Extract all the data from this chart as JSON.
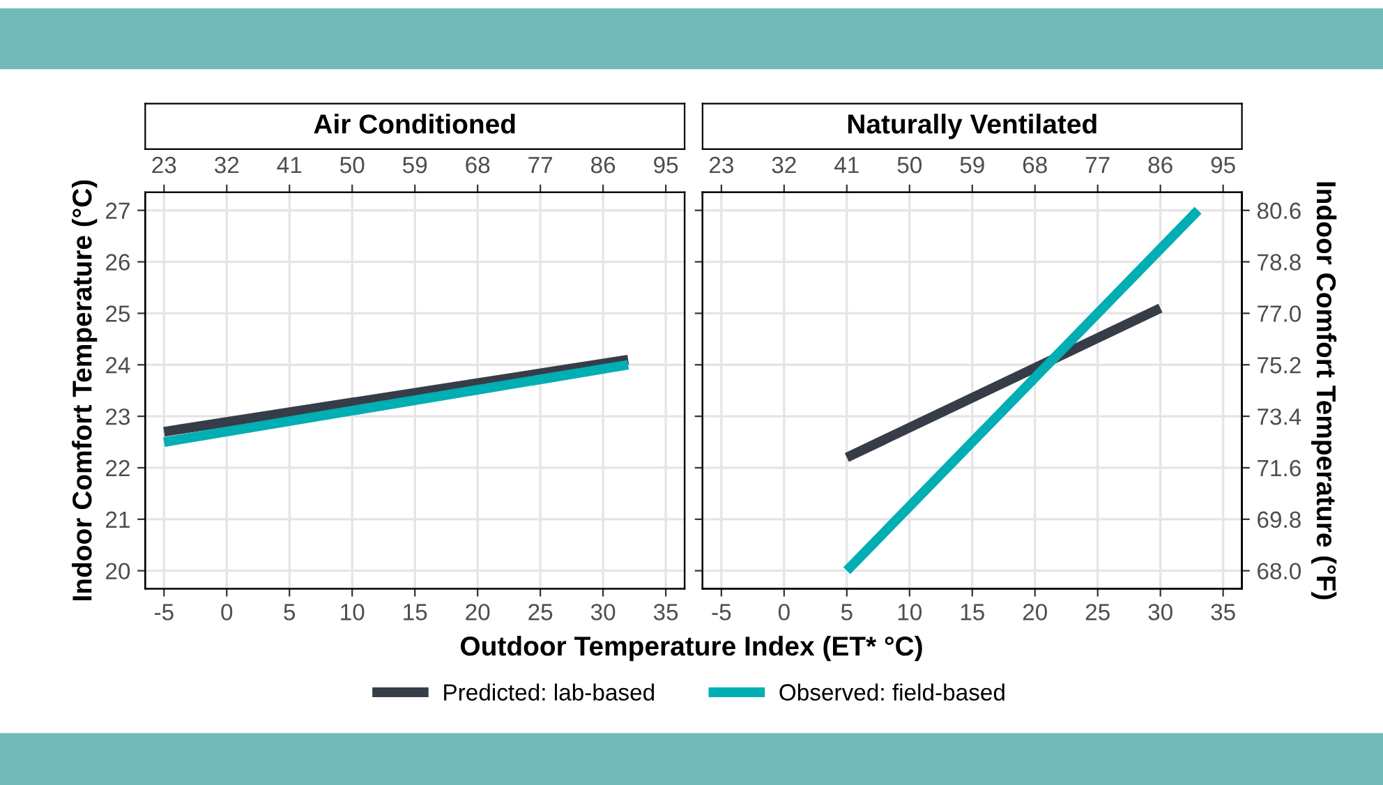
{
  "chart_data": [
    {
      "type": "line",
      "title": "Air Conditioned",
      "ylabel": "Indoor Comfort Temperature (°C)",
      "xlabel": "Outdoor Temperature Index (ET* °C)",
      "xlim": [
        -6.5,
        36.5
      ],
      "xticks": [
        -5,
        0,
        5,
        10,
        15,
        20,
        25,
        30,
        35
      ],
      "ylim": [
        19.65,
        27.35
      ],
      "yticks": [
        20,
        21,
        22,
        23,
        24,
        25,
        26,
        27
      ],
      "x2lim": [
        20.3,
        97.7
      ],
      "x2ticks": [
        23,
        32,
        41,
        50,
        59,
        68,
        77,
        86,
        95
      ],
      "grid": true,
      "legend": "bottom",
      "series": [
        {
          "name": "Predicted: lab-based",
          "color": "#373d48",
          "x": [
            -5,
            32
          ],
          "values": [
            22.7,
            24.1
          ]
        },
        {
          "name": "Observed: field-based",
          "color": "#00aeb3",
          "x": [
            -5,
            32
          ],
          "values": [
            22.5,
            24.0
          ]
        }
      ]
    },
    {
      "type": "line",
      "title": "Naturally Ventilated",
      "y2label": "Indoor Comfort Temperature (°F)",
      "xlim": [
        -6.5,
        36.5
      ],
      "xticks": [
        -5,
        0,
        5,
        10,
        15,
        20,
        25,
        30,
        35
      ],
      "ylim": [
        19.65,
        27.35
      ],
      "yticks": [
        20,
        21,
        22,
        23,
        24,
        25,
        26,
        27
      ],
      "x2lim": [
        20.3,
        97.7
      ],
      "x2ticks": [
        23,
        32,
        41,
        50,
        59,
        68,
        77,
        86,
        95
      ],
      "y2lim": [
        67.37,
        81.23
      ],
      "y2ticks": [
        {
          "value": 68,
          "label": "68.0"
        },
        {
          "value": 69.8,
          "label": "69.8"
        },
        {
          "value": 71.6,
          "label": "71.6"
        },
        {
          "value": 73.4,
          "label": "73.4"
        },
        {
          "value": 75.2,
          "label": "75.2"
        },
        {
          "value": 77,
          "label": "77.0"
        },
        {
          "value": 78.8,
          "label": "78.8"
        },
        {
          "value": 80.6,
          "label": "80.6"
        }
      ],
      "tick_labels": "x",
      "grid": true,
      "series": [
        {
          "name": "Predicted: lab-based",
          "color": "#373d48",
          "x": [
            5,
            30
          ],
          "values": [
            22.2,
            25.1
          ]
        },
        {
          "name": "Observed: field-based",
          "color": "#00aeb3",
          "x": [
            5,
            33
          ],
          "values": [
            20.0,
            27.0
          ]
        }
      ]
    }
  ]
}
